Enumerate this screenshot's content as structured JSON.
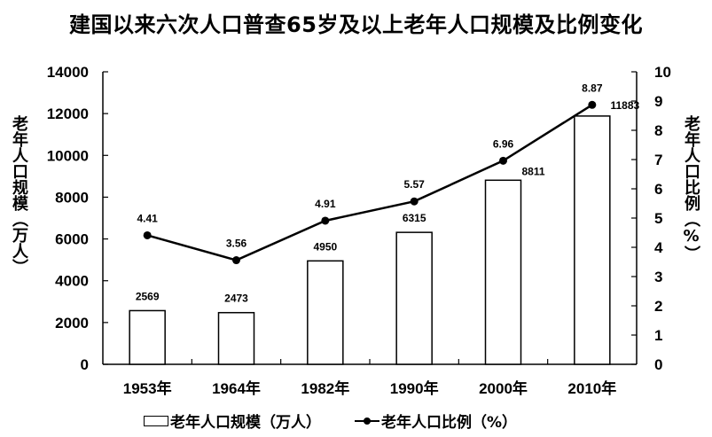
{
  "chart_data": {
    "type": "bar+line",
    "title": "建国以来六次人口普查65岁及以上老年人口规模及比例变化",
    "categories": [
      "1953年",
      "1964年",
      "1982年",
      "1990年",
      "2000年",
      "2010年"
    ],
    "series": [
      {
        "name": "老年人口规模（万人）",
        "type": "bar",
        "axis": "left",
        "values": [
          2569,
          2473,
          4950,
          6315,
          8811,
          11883
        ],
        "color": "#ffffff",
        "border": "#000000"
      },
      {
        "name": "老年人口比例（%）",
        "type": "line",
        "axis": "right",
        "values": [
          4.41,
          3.56,
          4.91,
          5.57,
          6.96,
          8.87
        ],
        "color": "#000000",
        "marker": "circle"
      }
    ],
    "ylabel": "老年人口规模（万人）",
    "y2label": "老年人口比例（%）",
    "xlabel": "",
    "ylim": [
      0,
      14000
    ],
    "y2lim": [
      0,
      10
    ],
    "yticks": [
      0,
      2000,
      4000,
      6000,
      8000,
      10000,
      12000,
      14000
    ],
    "y2ticks": [
      0,
      1,
      2,
      3,
      4,
      5,
      6,
      7,
      8,
      9,
      10
    ],
    "grid": false,
    "legend_position": "bottom"
  },
  "legend": {
    "bar_label": "老年人口规模（万人）",
    "line_label": "老年人口比例（%）"
  }
}
